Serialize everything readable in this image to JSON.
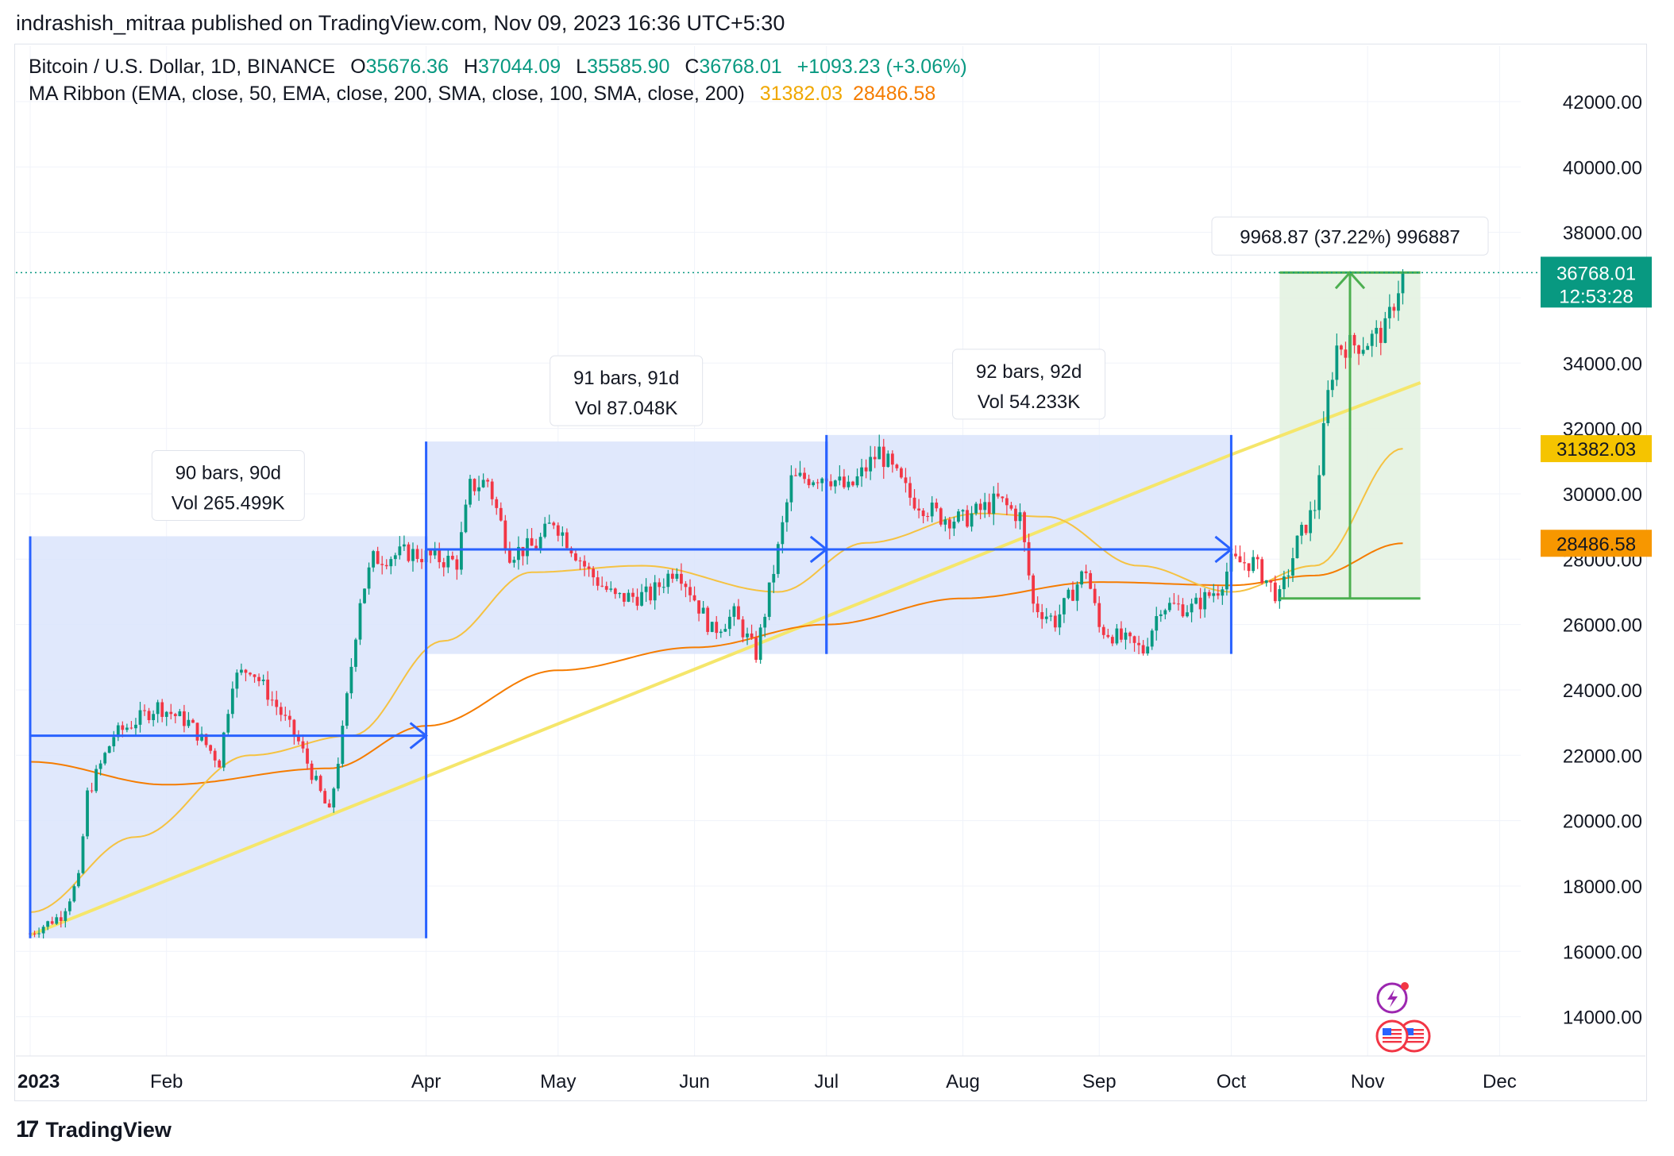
{
  "header": {
    "published_by": "indrashish_mitraa published on TradingView.com, Nov 09, 2023 16:36 UTC+5:30"
  },
  "legend": {
    "symbol": "Bitcoin / U.S. Dollar, 1D, BINANCE",
    "open_label": "O",
    "open": "35676.36",
    "high_label": "H",
    "high": "37044.09",
    "low_label": "L",
    "low": "35585.90",
    "close_label": "C",
    "close": "36768.01",
    "change": "+1093.23 (+3.06%)",
    "indicator": "MA Ribbon (EMA, close, 50, EMA, close, 200, SMA, close, 100, SMA, close, 200)",
    "ma1_value": "31382.03",
    "ma2_value": "28486.58"
  },
  "footer": {
    "brand": "TradingView"
  },
  "colors": {
    "up": "#089981",
    "down": "#f23645",
    "range_fill": "#dbe4fb",
    "range_line": "#2962ff",
    "gain_fill": "#e3f2e1",
    "gain_line": "#4caf50",
    "trend": "#f5e66b",
    "ema50": "#f5c242",
    "ema200": "#f57c00",
    "grid": "#f0f3fa"
  },
  "chart_data": {
    "type": "candlestick",
    "title": "Bitcoin / U.S. Dollar, 1D, BINANCE",
    "ylim": [
      12800,
      43700
    ],
    "y_ticks": [
      "14000.00",
      "16000.00",
      "18000.00",
      "20000.00",
      "22000.00",
      "24000.00",
      "26000.00",
      "28000.00",
      "30000.00",
      "32000.00",
      "34000.00",
      "36000.00",
      "38000.00",
      "40000.00",
      "42000.00"
    ],
    "x_ticks": [
      {
        "label": "2023",
        "date": "2023-01-01"
      },
      {
        "label": "Feb",
        "date": "2023-02-01"
      },
      {
        "label": "Apr",
        "date": "2023-04-01"
      },
      {
        "label": "May",
        "date": "2023-05-01"
      },
      {
        "label": "Jun",
        "date": "2023-06-01"
      },
      {
        "label": "Jul",
        "date": "2023-07-01"
      },
      {
        "label": "Aug",
        "date": "2023-08-01"
      },
      {
        "label": "Sep",
        "date": "2023-09-01"
      },
      {
        "label": "Oct",
        "date": "2023-10-01"
      },
      {
        "label": "Nov",
        "date": "2023-11-01"
      },
      {
        "label": "Dec",
        "date": "2023-12-01"
      }
    ],
    "price_path": [
      [
        "2023-01-01",
        16550
      ],
      [
        "2023-01-08",
        17100
      ],
      [
        "2023-01-12",
        18200
      ],
      [
        "2023-01-14",
        20800
      ],
      [
        "2023-01-20",
        22600
      ],
      [
        "2023-01-30",
        23500
      ],
      [
        "2023-02-06",
        23000
      ],
      [
        "2023-02-13",
        21800
      ],
      [
        "2023-02-16",
        24300
      ],
      [
        "2023-02-20",
        24700
      ],
      [
        "2023-02-26",
        23500
      ],
      [
        "2023-03-03",
        22400
      ],
      [
        "2023-03-10",
        20200
      ],
      [
        "2023-03-13",
        22700
      ],
      [
        "2023-03-17",
        26800
      ],
      [
        "2023-03-20",
        28000
      ],
      [
        "2023-03-28",
        28200
      ],
      [
        "2023-04-08",
        27900
      ],
      [
        "2023-04-11",
        30200
      ],
      [
        "2023-04-15",
        30400
      ],
      [
        "2023-04-20",
        28200
      ],
      [
        "2023-04-26",
        28400
      ],
      [
        "2023-04-30",
        29200
      ],
      [
        "2023-05-08",
        27600
      ],
      [
        "2023-05-14",
        26800
      ],
      [
        "2023-05-22",
        26900
      ],
      [
        "2023-05-28",
        27800
      ],
      [
        "2023-06-05",
        25800
      ],
      [
        "2023-06-10",
        26300
      ],
      [
        "2023-06-15",
        25100
      ],
      [
        "2023-06-20",
        28300
      ],
      [
        "2023-06-23",
        30400
      ],
      [
        "2023-07-01",
        30600
      ],
      [
        "2023-07-06",
        30100
      ],
      [
        "2023-07-13",
        31300
      ],
      [
        "2023-07-20",
        29900
      ],
      [
        "2023-07-27",
        29300
      ],
      [
        "2023-08-01",
        29200
      ],
      [
        "2023-08-09",
        29800
      ],
      [
        "2023-08-14",
        29300
      ],
      [
        "2023-08-17",
        26600
      ],
      [
        "2023-08-22",
        26100
      ],
      [
        "2023-08-29",
        27700
      ],
      [
        "2023-09-01",
        25900
      ],
      [
        "2023-09-11",
        25200
      ],
      [
        "2023-09-15",
        26600
      ],
      [
        "2023-09-22",
        26500
      ],
      [
        "2023-09-28",
        27100
      ],
      [
        "2023-10-01",
        27900
      ],
      [
        "2023-10-06",
        27900
      ],
      [
        "2023-10-12",
        26800
      ],
      [
        "2023-10-16",
        28500
      ],
      [
        "2023-10-20",
        29600
      ],
      [
        "2023-10-23",
        33000
      ],
      [
        "2023-10-25",
        34500
      ],
      [
        "2023-10-31",
        34600
      ],
      [
        "2023-11-05",
        35000
      ],
      [
        "2023-11-09",
        36768
      ]
    ],
    "ema50_path": [
      [
        "2023-01-01",
        17200
      ],
      [
        "2023-01-25",
        19500
      ],
      [
        "2023-02-20",
        22000
      ],
      [
        "2023-03-15",
        22600
      ],
      [
        "2023-04-05",
        25500
      ],
      [
        "2023-04-25",
        27600
      ],
      [
        "2023-05-20",
        27800
      ],
      [
        "2023-06-20",
        27000
      ],
      [
        "2023-07-10",
        28500
      ],
      [
        "2023-08-05",
        29400
      ],
      [
        "2023-08-20",
        29300
      ],
      [
        "2023-09-10",
        27800
      ],
      [
        "2023-10-01",
        27000
      ],
      [
        "2023-10-20",
        27800
      ],
      [
        "2023-11-09",
        31382.03
      ]
    ],
    "ema200_path": [
      [
        "2023-01-01",
        21800
      ],
      [
        "2023-02-01",
        21100
      ],
      [
        "2023-03-10",
        21600
      ],
      [
        "2023-04-01",
        22900
      ],
      [
        "2023-05-01",
        24600
      ],
      [
        "2023-06-01",
        25300
      ],
      [
        "2023-07-01",
        26000
      ],
      [
        "2023-08-01",
        26800
      ],
      [
        "2023-09-01",
        27300
      ],
      [
        "2023-10-01",
        27200
      ],
      [
        "2023-10-20",
        27500
      ],
      [
        "2023-11-09",
        28486.58
      ]
    ],
    "trend_line": [
      [
        "2023-01-01",
        16500
      ],
      [
        "2023-10-01",
        31200
      ],
      [
        "2023-11-13",
        33400
      ]
    ],
    "last_price": "36768.01",
    "countdown": "12:53:28",
    "ranges": [
      {
        "start": "2023-01-01",
        "end": "2023-04-01",
        "low": 16400,
        "high": 28700,
        "arrow_price": 22600,
        "label1": "90 bars, 90d",
        "label2": "Vol 265.499K"
      },
      {
        "start": "2023-04-01",
        "end": "2023-07-01",
        "low": 25100,
        "high": 31600,
        "arrow_price": 28300,
        "label1": "91 bars, 91d",
        "label2": "Vol 87.048K"
      },
      {
        "start": "2023-07-01",
        "end": "2023-10-01",
        "low": 25100,
        "high": 31800,
        "arrow_price": 28300,
        "label1": "92 bars, 92d",
        "label2": "Vol 54.233K"
      }
    ],
    "price_range": {
      "start": "2023-10-12",
      "end": "2023-11-13",
      "low": 26800,
      "high": 36770,
      "label": "9968.87 (37.22%) 996887"
    }
  }
}
